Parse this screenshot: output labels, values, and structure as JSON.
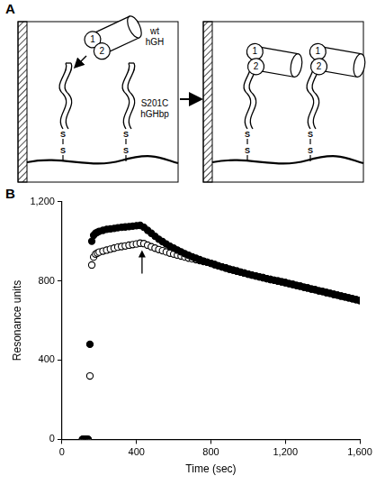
{
  "panel_a": {
    "letter": "A",
    "ligand_lines": [
      "wt",
      "hGH"
    ],
    "receptor_lines": [
      "S201C",
      "hGHbp"
    ],
    "disulfide": [
      "S",
      "S"
    ],
    "domains": [
      "1",
      "2"
    ]
  },
  "chart_data": {
    "letter": "B",
    "type": "scatter",
    "x_label": "Time (sec)",
    "y_label": "Resonance units",
    "x": [
      110,
      120,
      130,
      140,
      150,
      160,
      170,
      180,
      190,
      200,
      220,
      240,
      260,
      280,
      300,
      320,
      340,
      360,
      380,
      400,
      420,
      440,
      460,
      480,
      500,
      520,
      540,
      560,
      580,
      600,
      620,
      640,
      660,
      680,
      700,
      720,
      740,
      760,
      780,
      800,
      820,
      840,
      860,
      880,
      900,
      920,
      940,
      960,
      980,
      1000,
      1020,
      1040,
      1060,
      1080,
      1100,
      1120,
      1140,
      1160,
      1180,
      1200,
      1220,
      1240,
      1260,
      1280,
      1300,
      1320,
      1340,
      1360,
      1380,
      1400,
      1420,
      1440,
      1460,
      1480,
      1500,
      1520,
      1540,
      1560,
      1580,
      1600
    ],
    "series": [
      {
        "color": "#000000",
        "marker": "filled_circle",
        "values": [
          0,
          0,
          0,
          0,
          480,
          1000,
          1030,
          1040,
          1045,
          1050,
          1055,
          1060,
          1062,
          1065,
          1068,
          1070,
          1072,
          1074,
          1076,
          1078,
          1080,
          1070,
          1055,
          1040,
          1025,
          1010,
          998,
          986,
          975,
          965,
          955,
          946,
          937,
          929,
          921,
          914,
          907,
          900,
          894,
          888,
          882,
          876,
          870,
          865,
          859,
          854,
          849,
          844,
          839,
          834,
          829,
          825,
          820,
          816,
          811,
          807,
          803,
          799,
          795,
          791,
          786,
          782,
          777,
          773,
          768,
          764,
          759,
          755,
          750,
          746,
          741,
          737,
          732,
          728,
          723,
          719,
          714,
          710,
          705,
          701
        ]
      },
      {
        "color": "#000000",
        "marker": "open_circle",
        "values": [
          0,
          0,
          0,
          0,
          320,
          880,
          920,
          935,
          940,
          945,
          950,
          955,
          960,
          965,
          970,
          973,
          976,
          980,
          983,
          986,
          990,
          988,
          980,
          972,
          965,
          958,
          952,
          946,
          940,
          935,
          930,
          925,
          920,
          915,
          911,
          907,
          902,
          898,
          894,
          888,
          882,
          876,
          870,
          865,
          859,
          854,
          849,
          844,
          839,
          834,
          829,
          825,
          820,
          816,
          811,
          807,
          803,
          799,
          795,
          791,
          786,
          782,
          777,
          773,
          768,
          764,
          759,
          755,
          750,
          746,
          741,
          737,
          732,
          728,
          723,
          719,
          714,
          710,
          705,
          701
        ]
      }
    ],
    "arrow": {
      "x": 430,
      "y": 955
    },
    "xlim": [
      0,
      1600
    ],
    "xticks": [
      0,
      400,
      800,
      1200,
      1600
    ],
    "ylim": [
      0,
      1200
    ],
    "yticks": [
      0,
      400,
      800,
      1200
    ],
    "grid": false
  }
}
